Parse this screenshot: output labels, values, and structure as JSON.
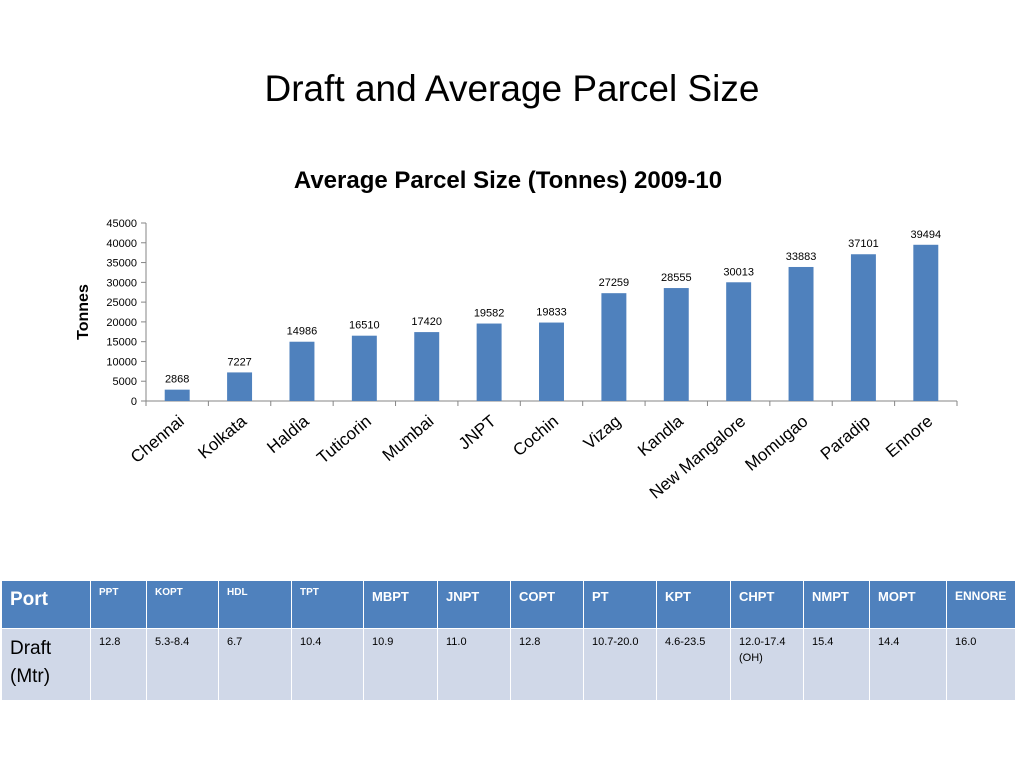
{
  "slide_title": "Draft and Average Parcel Size",
  "colors": {
    "bar": "#4f81bd",
    "header_bg": "#4f81bd",
    "body_bg": "#d0d8e8"
  },
  "chart_data": {
    "type": "bar",
    "title": "Average Parcel Size (Tonnes) 2009-10",
    "xlabel": "",
    "ylabel": "Tonnes",
    "ylim": [
      0,
      45000
    ],
    "yticks": [
      0,
      5000,
      10000,
      15000,
      20000,
      25000,
      30000,
      35000,
      40000,
      45000
    ],
    "categories": [
      "Chennai",
      "Kolkata",
      "Haldia",
      "Tuticorin",
      "Mumbai",
      "JNPT",
      "Cochin",
      "Vizag",
      "Kandla",
      "New Mangalore",
      "Momugao",
      "Paradip",
      "Ennore"
    ],
    "values": [
      2868,
      7227,
      14986,
      16510,
      17420,
      19582,
      19833,
      27259,
      28555,
      30013,
      33883,
      37101,
      39494
    ],
    "grid": false,
    "data_labels": true
  },
  "table": {
    "header_label": "Port",
    "columns": [
      "PPT",
      "KOPT",
      "HDL",
      "TPT",
      "MBPT",
      "JNPT",
      "COPT",
      "PT",
      "KPT",
      "CHPT",
      "NMPT",
      "MOPT",
      "ENNORE"
    ],
    "row_label": "Draft (Mtr)",
    "values": [
      "12.8",
      "5.3-8.4",
      "6.7",
      "10.4",
      "10.9",
      "11.0",
      "12.8",
      "10.7-20.0",
      "4.6-23.5",
      "12.0-17.4 (OH)",
      "15.4",
      "14.4",
      "16.0"
    ]
  }
}
